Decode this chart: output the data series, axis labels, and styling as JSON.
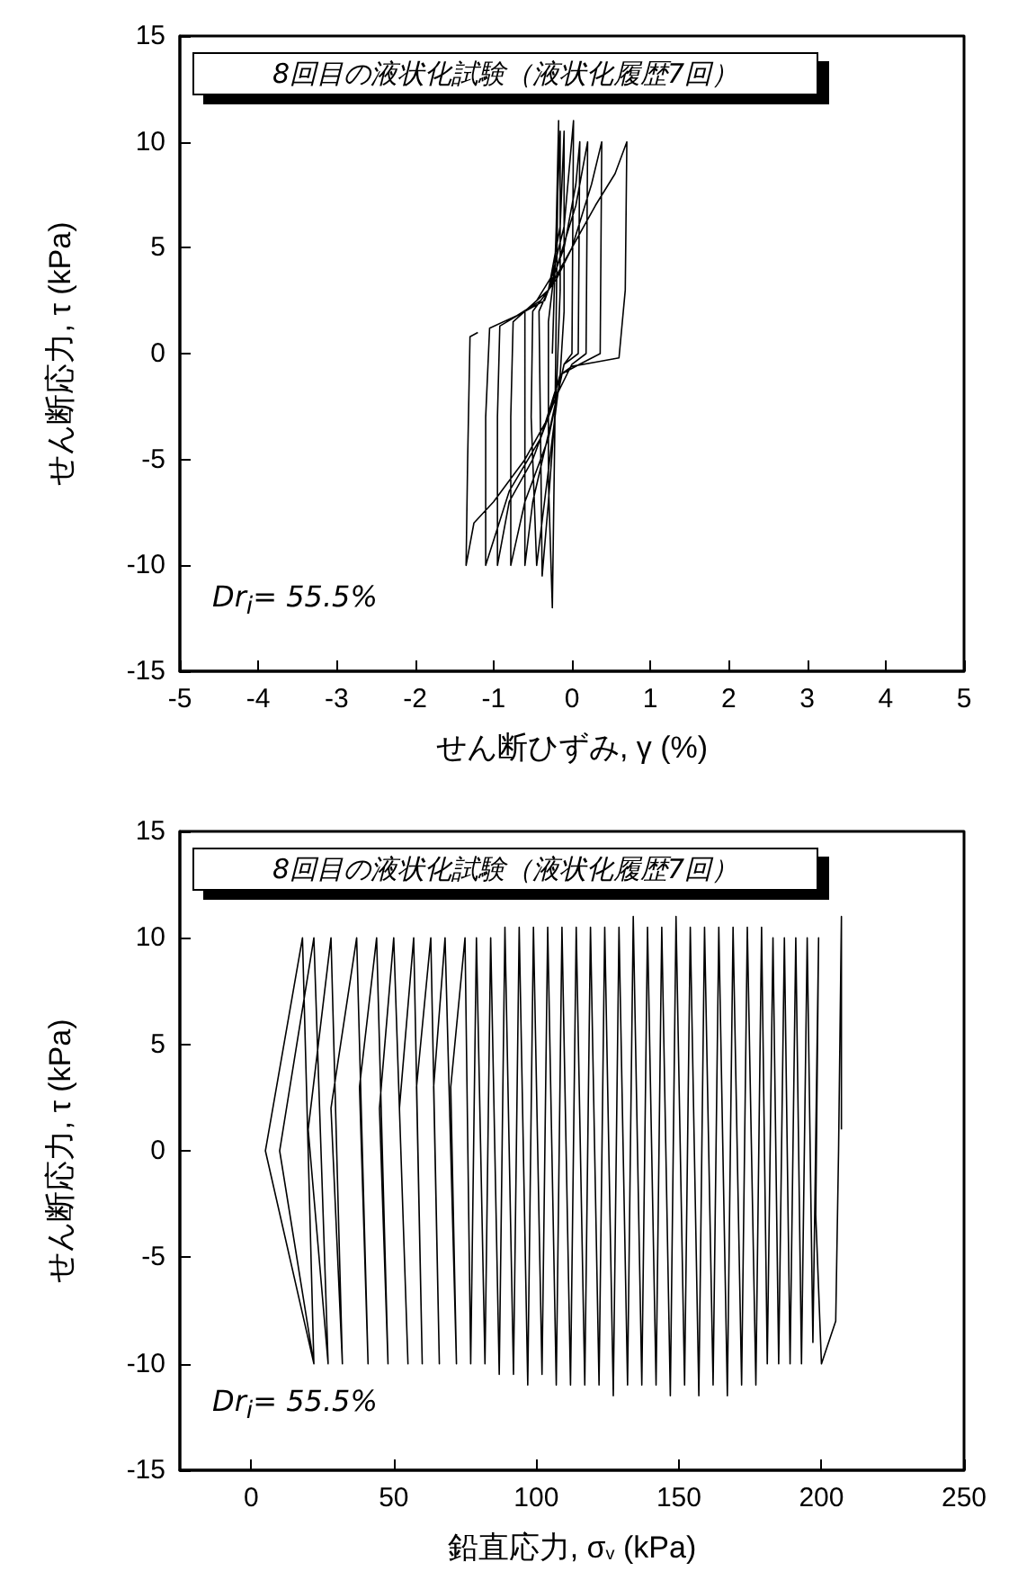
{
  "chart_data": [
    {
      "type": "line",
      "title": "8回目の液状化試験（液状化履歴7回）",
      "annotations": [
        "Dr$_{i}$= 55.5%"
      ],
      "xlabel": "せん断ひずみ, γ (%)",
      "ylabel": "せん断応力, τ (kPa)",
      "xlim": [
        -5,
        5
      ],
      "xticks": [
        -5,
        -4,
        -3,
        -2,
        -1,
        0,
        1,
        2,
        3,
        4,
        5
      ],
      "ylim": [
        -15,
        15
      ],
      "yticks": [
        -15,
        -10,
        -5,
        0,
        5,
        10,
        15
      ],
      "grid": false,
      "marker": "none",
      "line_style": "solid",
      "series": [
        {
          "color": "#000000",
          "x": [
            -0.25,
            -0.2,
            -0.17,
            -0.2,
            -0.22,
            -0.25,
            -0.3,
            -0.3,
            -0.22,
            -0.15,
            -0.15,
            -0.2,
            -0.3,
            -0.38,
            -0.4,
            -0.42,
            -0.3,
            -0.15,
            -0.1,
            -0.1,
            -0.15,
            -0.25,
            -0.45,
            -0.52,
            -0.5,
            -0.3,
            -0.1,
            0.02,
            0.0,
            -0.1,
            -0.25,
            -0.5,
            -0.6,
            -0.6,
            -0.6,
            -0.35,
            -0.1,
            0.05,
            0.1,
            0.08,
            -0.1,
            -0.3,
            -0.6,
            -0.78,
            -0.78,
            -0.75,
            -0.45,
            -0.2,
            0.05,
            0.2,
            0.18,
            0.0,
            -0.2,
            -0.5,
            -0.8,
            -0.95,
            -0.95,
            -0.92,
            -0.6,
            -0.3,
            0.0,
            0.25,
            0.38,
            0.36,
            0.1,
            -0.15,
            -0.4,
            -0.8,
            -1.1,
            -1.1,
            -1.05,
            -0.7,
            -0.4,
            -0.2,
            0.0,
            0.3,
            0.55,
            0.7,
            0.68,
            0.6,
            0.3,
            0.0,
            -0.15,
            -0.3,
            -0.6,
            -1.0,
            -1.25,
            -1.35,
            -1.33,
            -1.3,
            -1.2
          ],
          "values": [
            0,
            6,
            11,
            2,
            -4,
            -12,
            -6,
            1.5,
            4,
            10.5,
            3,
            -2,
            -7,
            -10.5,
            -4,
            2,
            3,
            6,
            10.5,
            2,
            -1,
            -4,
            -10,
            -3,
            2,
            3,
            6,
            11,
            0,
            -0.5,
            -3,
            -7,
            -10,
            -2,
            2,
            2.5,
            5,
            8,
            10,
            0,
            -0.5,
            -4,
            -7,
            -10,
            -3,
            1.5,
            2.5,
            4,
            7,
            10,
            0,
            -0.5,
            -2,
            -5,
            -7,
            -10,
            -3,
            1.3,
            2,
            3,
            5,
            8,
            10,
            0,
            -0.5,
            -1,
            -4,
            -6.5,
            -10,
            -3,
            1.2,
            1.8,
            2.5,
            3.5,
            5,
            7,
            8.5,
            10,
            3,
            -0.2,
            -0.4,
            -0.6,
            -1,
            -3,
            -5,
            -7,
            -8,
            -10,
            -5,
            0.8,
            1
          ]
        }
      ]
    },
    {
      "type": "line",
      "title": "8回目の液状化試験（液状化履歴7回）",
      "annotations": [
        "Dr$_{i}$= 55.5%"
      ],
      "xlabel": "鉛直応力, σ$_{v}$ (kPa)",
      "ylabel": "せん断応力, τ (kPa)",
      "xlim": [
        -25,
        250
      ],
      "xticks": [
        0,
        50,
        100,
        150,
        200,
        250
      ],
      "ylim": [
        -15,
        15
      ],
      "yticks": [
        -15,
        -10,
        -5,
        0,
        5,
        10,
        15
      ],
      "grid": false,
      "marker": "none",
      "line_style": "solid",
      "series": [
        {
          "color": "#000000",
          "x": [
            207,
            207,
            206,
            205,
            200,
            198,
            199,
            197,
            195,
            193,
            191,
            189,
            187,
            185,
            183,
            181,
            179,
            177,
            174,
            172,
            169,
            167,
            164,
            162,
            159,
            157,
            154,
            152,
            149,
            147,
            144,
            142,
            139,
            137,
            134,
            132,
            129,
            127,
            124,
            122,
            119,
            117,
            114,
            112,
            109,
            107,
            104,
            102,
            99,
            97,
            94,
            92,
            89,
            87,
            84,
            82,
            79,
            77,
            75,
            70,
            72,
            68,
            64,
            66,
            63,
            58,
            60,
            57,
            52,
            55,
            50,
            45,
            48,
            44,
            38,
            41,
            37,
            28,
            32,
            28,
            20,
            27,
            22,
            10,
            22,
            18,
            5,
            22
          ],
          "values": [
            1,
            11,
            0,
            -8,
            -10,
            -3,
            10,
            -9,
            10,
            -10,
            10,
            -10,
            10,
            -10,
            10,
            -10,
            10.5,
            -11,
            10.5,
            -11,
            10.5,
            -11.5,
            10.5,
            -11,
            10.5,
            -11.5,
            10.5,
            -11,
            11,
            -11.5,
            10.5,
            -11,
            10.5,
            -11,
            11,
            -11,
            10.5,
            -11.5,
            10.5,
            -11,
            10.5,
            -11,
            10.5,
            -11,
            10.5,
            -11,
            10.5,
            -10.5,
            10.5,
            -11,
            10.5,
            -10.5,
            10.5,
            -10.5,
            10,
            -10,
            10,
            -10,
            10,
            3,
            -10,
            10,
            3,
            -10,
            10,
            3,
            -10,
            10,
            2,
            -10,
            10,
            2,
            -10,
            10,
            3,
            -10,
            10,
            2,
            -10,
            10,
            1,
            -10,
            10,
            0,
            -10,
            10,
            0,
            -10
          ]
        }
      ]
    }
  ]
}
